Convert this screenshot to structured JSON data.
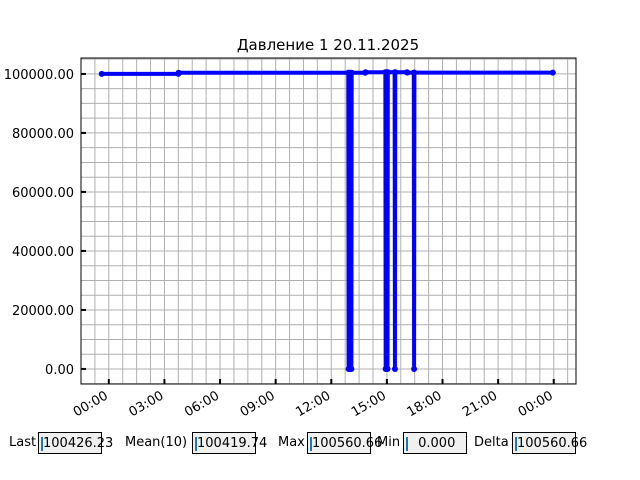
{
  "chart_data": {
    "type": "line",
    "title": "Давление 1 20.11.2025",
    "xlabel": "",
    "ylabel": "",
    "xlim": [
      "2025-11-19 22:30",
      "2025-11-21 01:12"
    ],
    "ylim": [
      -5100,
      105400
    ],
    "x_tick_labels": [
      "00:00",
      "03:00",
      "06:00",
      "09:00",
      "12:00",
      "15:00",
      "18:00",
      "21:00",
      "00:00"
    ],
    "y_tick_labels": [
      "0.00",
      "20000.00",
      "40000.00",
      "60000.00",
      "80000.00",
      "100000.00"
    ],
    "y_ticks": [
      0,
      20000,
      40000,
      60000,
      80000,
      100000
    ],
    "grid": true,
    "color": "#0000ff",
    "marker": "o",
    "points": [
      [
        "2025-11-19 23:37",
        100000
      ],
      [
        "2025-11-20 03:45",
        100000
      ],
      [
        "2025-11-20 03:46",
        100400
      ],
      [
        "2025-11-20 12:55",
        100400
      ],
      [
        "2025-11-20 12:56",
        0
      ],
      [
        "2025-11-20 12:57",
        100400
      ],
      [
        "2025-11-20 13:00",
        0
      ],
      [
        "2025-11-20 13:02",
        100400
      ],
      [
        "2025-11-20 13:05",
        0
      ],
      [
        "2025-11-20 13:06",
        100400
      ],
      [
        "2025-11-20 13:50",
        100400
      ],
      [
        "2025-11-20 13:51",
        100560
      ],
      [
        "2025-11-20 14:55",
        100560
      ],
      [
        "2025-11-20 14:56",
        0
      ],
      [
        "2025-11-20 14:57",
        100560
      ],
      [
        "2025-11-20 15:02",
        0
      ],
      [
        "2025-11-20 15:03",
        100560
      ],
      [
        "2025-11-20 15:25",
        100560
      ],
      [
        "2025-11-20 15:26",
        0
      ],
      [
        "2025-11-20 15:27",
        100560
      ],
      [
        "2025-11-20 16:05",
        100560
      ],
      [
        "2025-11-20 16:06",
        100426
      ],
      [
        "2025-11-20 16:27",
        100426
      ],
      [
        "2025-11-20 16:28",
        0
      ],
      [
        "2025-11-20 16:29",
        100426
      ],
      [
        "2025-11-20 23:57",
        100426
      ]
    ]
  },
  "stats": [
    {
      "label": "Last",
      "value": "100426.23"
    },
    {
      "label": "Mean(10)",
      "value": "100419.74"
    },
    {
      "label": "Max",
      "value": "100560.66"
    },
    {
      "label": "Min",
      "value": " 0.000"
    },
    {
      "label": "Delta",
      "value": "100560.66"
    }
  ]
}
